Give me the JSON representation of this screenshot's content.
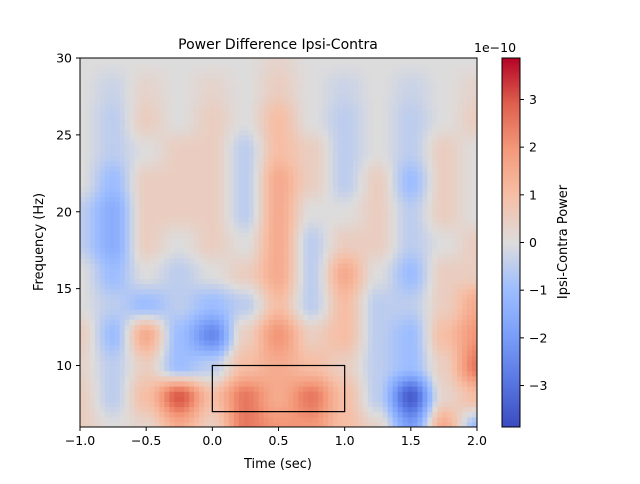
{
  "chart_data": {
    "type": "heatmap",
    "title": "Power Difference Ipsi-Contra",
    "xlabel": "Time (sec)",
    "ylabel": "Frequency (Hz)",
    "xlim": [
      -1.0,
      2.0
    ],
    "ylim": [
      6,
      30
    ],
    "xticks": [
      "−1.0",
      "−0.5",
      "0.0",
      "0.5",
      "1.0",
      "1.5",
      "2.0"
    ],
    "xtick_values": [
      -1.0,
      -0.5,
      0.0,
      0.5,
      1.0,
      1.5,
      2.0
    ],
    "yticks": [
      "10",
      "15",
      "20",
      "25",
      "30"
    ],
    "ytick_values": [
      10,
      15,
      20,
      25,
      30
    ],
    "colormap": "coolwarm",
    "colorbar": {
      "label": "Ipsi-Contra Power",
      "offset_text": "1e−10",
      "range": [
        -3.87,
        3.87
      ],
      "ticks": [
        "−3",
        "−2",
        "−1",
        "0",
        "1",
        "2",
        "3"
      ],
      "tick_values": [
        -3,
        -2,
        -1,
        0,
        1,
        2,
        3
      ]
    },
    "value_scale": "1e-10",
    "times": [
      -1.0,
      -0.75,
      -0.5,
      -0.25,
      0.0,
      0.25,
      0.5,
      0.75,
      1.0,
      1.25,
      1.5,
      1.75,
      2.0
    ],
    "freqs": [
      6,
      8,
      10,
      12,
      14,
      16,
      18,
      20,
      22,
      24,
      26,
      28,
      30
    ],
    "values": [
      [
        0.5,
        0,
        0.3,
        1.5,
        0.5,
        2.5,
        2,
        2,
        1,
        0.3,
        -2,
        1.5,
        -1
      ],
      [
        0.5,
        -0.5,
        1,
        3,
        1,
        2.5,
        1.5,
        2.5,
        1,
        -0.5,
        -3.5,
        0.3,
        1
      ],
      [
        0.3,
        -0.5,
        0.5,
        -1,
        -0.5,
        1,
        1.5,
        1,
        0.5,
        -0.5,
        -1,
        0.5,
        2.5
      ],
      [
        0.5,
        -1,
        1.5,
        -1,
        -2.5,
        0.5,
        2,
        0.5,
        1,
        -0.5,
        -1,
        1,
        2
      ],
      [
        0,
        -0.5,
        -1,
        -0.5,
        -1,
        -0.5,
        1,
        -0.5,
        1,
        -0.5,
        -0.5,
        0.5,
        1.5
      ],
      [
        0,
        -1,
        0,
        -0.5,
        0,
        0.5,
        1.5,
        -0.5,
        1.5,
        0,
        -1,
        0.5,
        0.5
      ],
      [
        -0.5,
        -1.5,
        0.5,
        0,
        0.5,
        0,
        1.5,
        -0.5,
        0.5,
        0.5,
        -0.5,
        0,
        0.5
      ],
      [
        -0.5,
        -1.5,
        0.5,
        0.5,
        0.5,
        -0.5,
        1.5,
        0,
        0,
        0.5,
        -0.5,
        0.5,
        0
      ],
      [
        0,
        -1,
        0.5,
        0.5,
        0.5,
        -0.5,
        1.5,
        0.5,
        -0.5,
        0.5,
        -1,
        0.5,
        0
      ],
      [
        0,
        -0.5,
        0,
        0.5,
        0.5,
        -0.5,
        1,
        0.5,
        -0.5,
        0,
        -0.5,
        0.5,
        0
      ],
      [
        0,
        -0.5,
        0.5,
        0,
        0.5,
        0,
        1,
        0,
        -0.5,
        0,
        -0.5,
        0,
        0.5
      ],
      [
        0,
        -0.3,
        0.3,
        0,
        0.3,
        0,
        0.5,
        0,
        -0.3,
        0,
        -0.3,
        0,
        0.3
      ],
      [
        0,
        0,
        0,
        0,
        0,
        0,
        0.3,
        0,
        0,
        0,
        0,
        0,
        0
      ]
    ],
    "annotation_box": {
      "time": [
        0.0,
        1.0
      ],
      "freq": [
        7,
        10
      ],
      "color": "#000000"
    }
  }
}
